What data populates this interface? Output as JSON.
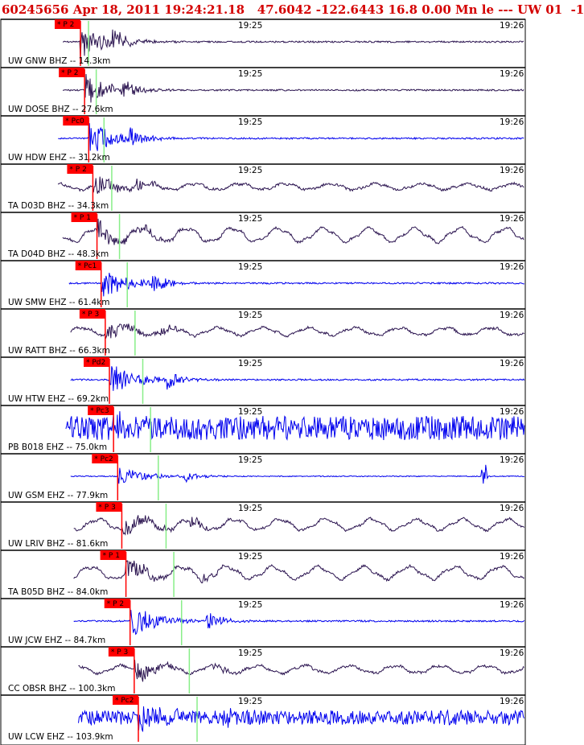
{
  "header": {
    "text": "60245656 Apr 18, 2011 19:24:21.18   47.6042 -122.6443 16.8 0.00 Mn le --- UW 01  -1"
  },
  "colors": {
    "header": "#d40000",
    "trace_dark": "#2b1450",
    "trace_blue": "#0000ee",
    "pick_box": "#ff0000",
    "s_marker": "#88ee88"
  },
  "time_ticks": [
    "19:25",
    "19:26"
  ],
  "chart_data": {
    "type": "line",
    "title": "60245656 Apr 18, 2011 19:24:21.18   47.6042 -122.6443 16.8 0.00 Mn le --- UW 01  -1",
    "x_ticks": [
      "19:25",
      "19:26"
    ],
    "traces": [
      {
        "label": "UW GNW BHZ -- 14.3km",
        "network": "UW",
        "station": "GNW",
        "channel": "BHZ",
        "distance_km": 14.3,
        "pick": "P 2",
        "color": "dark",
        "style": "event",
        "noise": 0.05,
        "start": 0.18
      },
      {
        "label": "UW DOSE BHZ -- 27.6km",
        "network": "UW",
        "station": "DOSE",
        "channel": "BHZ",
        "distance_km": 27.6,
        "pick": "P 2",
        "color": "dark",
        "style": "event",
        "noise": 0.06,
        "start": 0.18
      },
      {
        "label": "UW HDW EHZ -- 31.2km",
        "network": "UW",
        "station": "HDW",
        "channel": "EHZ",
        "distance_km": 31.2,
        "pick": "Pc0",
        "color": "blue",
        "style": "event",
        "noise": 0.05,
        "start": 0.15
      },
      {
        "label": "TA D03D BHZ -- 34.3km",
        "network": "TA",
        "station": "D03D",
        "channel": "BHZ",
        "distance_km": 34.3,
        "pick": "P 2",
        "color": "dark",
        "style": "wave",
        "noise": 0.4,
        "start": 0.15
      },
      {
        "label": "TA D04D BHZ -- 48.3km",
        "network": "TA",
        "station": "D04D",
        "channel": "BHZ",
        "distance_km": 48.3,
        "pick": "P 1",
        "color": "dark",
        "style": "wave",
        "noise": 0.9,
        "start": 0.18
      },
      {
        "label": "UW SMW EHZ -- 61.4km",
        "network": "UW",
        "station": "SMW",
        "channel": "EHZ",
        "distance_km": 61.4,
        "pick": "Pc1",
        "color": "blue",
        "style": "event",
        "noise": 0.03,
        "start": 0.22
      },
      {
        "label": "UW RATT BHZ -- 66.3km",
        "network": "UW",
        "station": "RATT",
        "channel": "BHZ",
        "distance_km": 66.3,
        "pick": "P 3",
        "color": "dark",
        "style": "wave",
        "noise": 0.5,
        "start": 0.23
      },
      {
        "label": "UW HTW EHZ -- 69.2km",
        "network": "UW",
        "station": "HTW",
        "channel": "EHZ",
        "distance_km": 69.2,
        "pick": "Pd2",
        "color": "blue",
        "style": "event",
        "noise": 0.06,
        "start": 0.23
      },
      {
        "label": "PB B018 EHZ -- 75.0km",
        "network": "PB",
        "station": "B018",
        "channel": "EHZ",
        "distance_km": 75.0,
        "pick": "Pc3",
        "color": "blue",
        "style": "noisy",
        "noise": 1.0,
        "start": 0.2
      },
      {
        "label": "UW GSM EHZ -- 77.9km",
        "network": "UW",
        "station": "GSM",
        "channel": "EHZ",
        "distance_km": 77.9,
        "pick": "Pc2",
        "color": "blue",
        "style": "flat",
        "noise": 0.02,
        "start": 0.23
      },
      {
        "label": "UW LRIV BHZ -- 81.6km",
        "network": "UW",
        "station": "LRIV",
        "channel": "BHZ",
        "distance_km": 81.6,
        "pick": "P 3",
        "color": "dark",
        "style": "wave",
        "noise": 0.7,
        "start": 0.25
      },
      {
        "label": "TA B05D BHZ -- 84.0km",
        "network": "TA",
        "station": "B05D",
        "channel": "BHZ",
        "distance_km": 84.0,
        "pick": "P 1",
        "color": "dark",
        "style": "wave",
        "noise": 0.8,
        "start": 0.25
      },
      {
        "label": "UW JCW EHZ -- 84.7km",
        "network": "UW",
        "station": "JCW",
        "channel": "EHZ",
        "distance_km": 84.7,
        "pick": "P 2",
        "color": "blue",
        "style": "event",
        "noise": 0.15,
        "start": 0.25
      },
      {
        "label": "CC OBSR BHZ -- 100.3km",
        "network": "CC",
        "station": "OBSR",
        "channel": "BHZ",
        "distance_km": 100.3,
        "pick": "P 3",
        "color": "dark",
        "style": "wave",
        "noise": 0.5,
        "start": 0.28
      },
      {
        "label": "UW LCW EHZ -- 103.9km",
        "network": "UW",
        "station": "LCW",
        "channel": "EHZ",
        "distance_km": 103.9,
        "pick": "Pc2",
        "color": "blue",
        "style": "noisy",
        "noise": 0.6,
        "start": 0.28
      }
    ]
  }
}
